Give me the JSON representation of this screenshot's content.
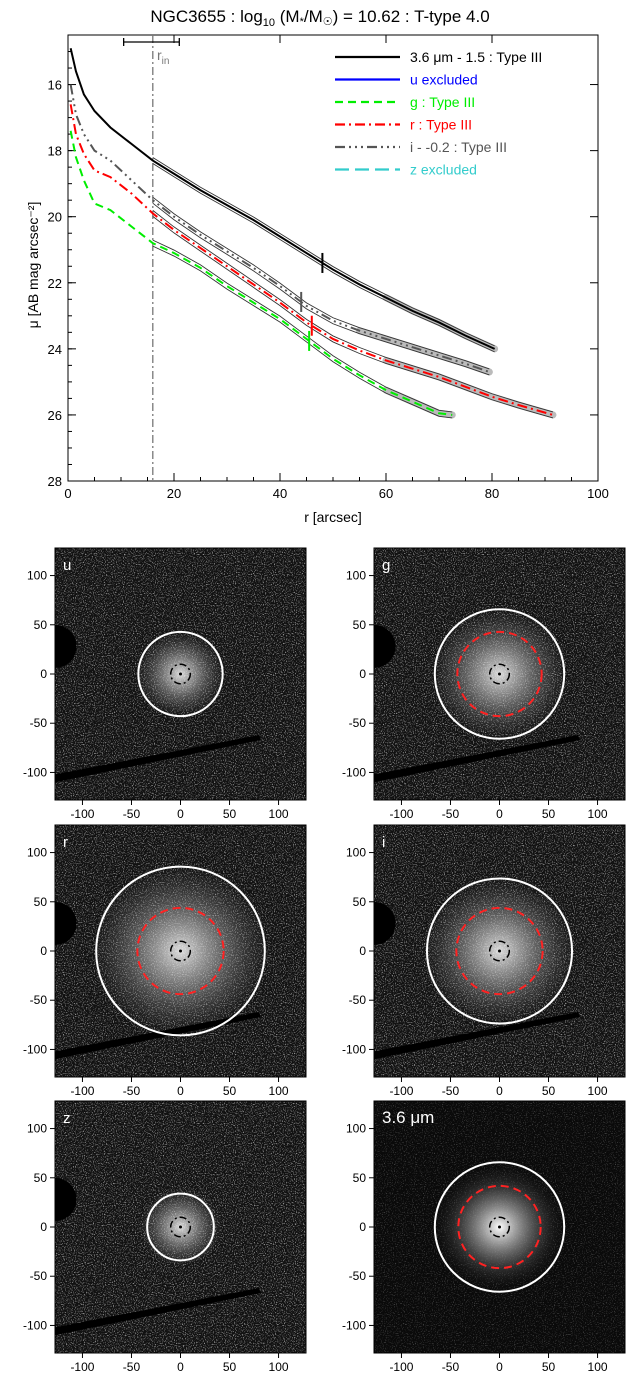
{
  "colors": {
    "irac": "#000000",
    "u": "#0000ff",
    "g": "#00ee00",
    "r": "#ff0000",
    "i": "#555555",
    "z": "#33cccc",
    "fit": "#333333",
    "rin": "#777777"
  },
  "profile_chart": {
    "title_prefix": "NGC3655 : log",
    "title_sub": "10",
    "title_mid": " (M",
    "title_star": "*",
    "title_slash": "/M",
    "title_sun": "☉",
    "title_suffix": ") = 10.62 : T-type 4.0",
    "xlabel": "r [arcsec]",
    "ylabel": "μ [AB mag arcsec⁻²]",
    "rin_label": "r",
    "rin_sub": "in",
    "legend": [
      {
        "key": "irac",
        "label": "3.6 μm - 1.5 : Type III"
      },
      {
        "key": "u",
        "label": "u excluded"
      },
      {
        "key": "g",
        "label": "g : Type III"
      },
      {
        "key": "r",
        "label": "r : Type III"
      },
      {
        "key": "i",
        "label": "i - -0.2 : Type III"
      },
      {
        "key": "z",
        "label": "z excluded"
      }
    ]
  },
  "chart_data": [
    {
      "type": "line",
      "xlim": [
        0,
        100
      ],
      "ylim": [
        28,
        14.5
      ],
      "xticks": [
        0,
        20,
        40,
        60,
        80,
        100
      ],
      "yticks": [
        16,
        18,
        20,
        22,
        24,
        26,
        28
      ],
      "rin": 16,
      "rin_err": [
        10.5,
        21
      ],
      "series": [
        {
          "name": "3.6 μm - 1.5 : Type III",
          "key": "irac",
          "dash": "",
          "x": [
            0.5,
            1.5,
            3,
            5,
            8,
            12,
            16,
            20,
            25,
            30,
            35,
            40,
            45,
            50,
            55,
            60,
            65,
            70,
            75,
            80.5
          ],
          "y": [
            14.9,
            15.6,
            16.3,
            16.8,
            17.3,
            17.8,
            18.3,
            18.7,
            19.2,
            19.65,
            20.1,
            20.6,
            21.1,
            21.6,
            22.05,
            22.45,
            22.85,
            23.2,
            23.6,
            24.0
          ],
          "break_r": 48
        },
        {
          "name": "g : Type III",
          "key": "g",
          "dash": "8 5",
          "x": [
            0.5,
            1.5,
            3,
            5,
            8,
            12,
            16,
            20,
            25,
            30,
            35,
            40,
            45,
            50,
            55,
            60,
            65,
            70,
            72.5
          ],
          "y": [
            17.4,
            18.2,
            18.9,
            19.6,
            19.8,
            20.3,
            20.8,
            21.1,
            21.55,
            22.1,
            22.6,
            23.1,
            23.7,
            24.3,
            24.8,
            25.25,
            25.6,
            25.95,
            26.0
          ],
          "break_r": 45.5
        },
        {
          "name": "r : Type III",
          "key": "r",
          "dash": "10 4 2 4",
          "x": [
            0.5,
            1.5,
            3,
            5,
            8,
            12,
            16,
            20,
            25,
            30,
            35,
            40,
            45,
            50,
            55,
            60,
            65,
            70,
            75,
            80,
            85,
            91.5
          ],
          "y": [
            16.6,
            17.5,
            18.1,
            18.6,
            18.8,
            19.3,
            19.9,
            20.4,
            20.95,
            21.5,
            22.05,
            22.6,
            23.2,
            23.7,
            24.05,
            24.35,
            24.6,
            24.85,
            25.15,
            25.45,
            25.7,
            26.0
          ],
          "break_r": 46
        },
        {
          "name": "i - -0.2 : Type III",
          "key": "i",
          "dash": "10 4 2 4 2 4 2 4",
          "x": [
            0.5,
            1.5,
            3,
            5,
            8,
            12,
            16,
            20,
            25,
            30,
            35,
            40,
            45,
            50,
            55,
            60,
            65,
            70,
            75,
            79.5
          ],
          "y": [
            16.0,
            16.9,
            17.5,
            18.0,
            18.3,
            18.9,
            19.5,
            20.0,
            20.55,
            21.05,
            21.55,
            22.1,
            22.7,
            23.15,
            23.45,
            23.7,
            23.95,
            24.2,
            24.45,
            24.7
          ],
          "break_r": 44
        },
        {
          "name": "z excluded",
          "key": "z",
          "dash": "",
          "x": [],
          "y": []
        },
        {
          "name": "u excluded",
          "key": "u",
          "dash": "",
          "x": [],
          "y": []
        }
      ]
    },
    {
      "type": "image-panels",
      "axis_ticks_x": [
        -100,
        -50,
        0,
        50,
        100
      ],
      "axis_ticks_y": [
        100,
        50,
        0,
        -50,
        -100
      ],
      "panels": [
        {
          "label": "u",
          "inner_r": 10,
          "outer_r": 43,
          "red_r": 0,
          "dark": false
        },
        {
          "label": "g",
          "inner_r": 10,
          "outer_r": 66,
          "red_r": 43,
          "dark": false
        },
        {
          "label": "r",
          "inner_r": 10,
          "outer_r": 86,
          "red_r": 44,
          "dark": false
        },
        {
          "label": "i",
          "inner_r": 10,
          "outer_r": 74,
          "red_r": 44,
          "dark": false
        },
        {
          "label": "z",
          "inner_r": 10,
          "outer_r": 34,
          "red_r": 0,
          "dark": false
        },
        {
          "label": "3.6 μm",
          "inner_r": 10,
          "outer_r": 66,
          "red_r": 42,
          "dark": true
        }
      ]
    }
  ]
}
